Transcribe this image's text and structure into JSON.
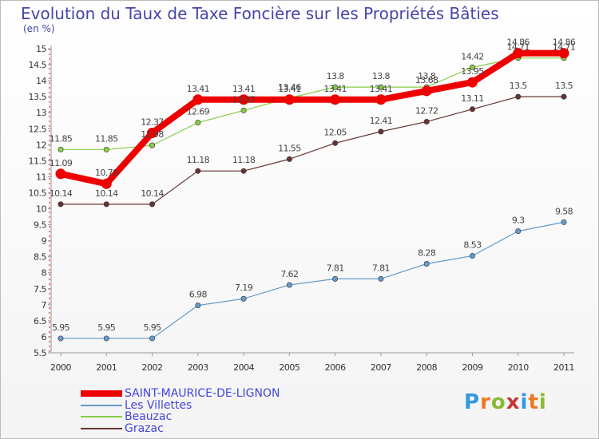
{
  "title": "Evolution du Taux de Taxe Foncière sur les Propriétés Bâties",
  "unit": "(en %)",
  "logo": "Proxiti",
  "logo_colors": [
    "#3399dd",
    "#ee7722",
    "#88bb33",
    "#cc3333",
    "#3399dd",
    "#ee7722",
    "#88bb33"
  ],
  "chart_data": {
    "type": "line",
    "title": "Evolution du Taux de Taxe Foncière sur les Propriétés Bâties",
    "ylabel": "(en %)",
    "xlabel": "",
    "ylim": [
      5.5,
      15
    ],
    "yticks": [
      "5.5",
      "6",
      "6.5",
      "7",
      "7.5",
      "8",
      "8.5",
      "9",
      "9.5",
      "10",
      "10.5",
      "11",
      "11.5",
      "12",
      "12.5",
      "13",
      "13.5",
      "14",
      "14.5",
      "15"
    ],
    "categories": [
      "2000",
      "2001",
      "2002",
      "2003",
      "2004",
      "2005",
      "2006",
      "2007",
      "2008",
      "2009",
      "2010",
      "2011"
    ],
    "grid": false,
    "legend": "bottom-left",
    "series": [
      {
        "name": "SAINT-MAURICE-DE-LIGNON",
        "color": "#ee0000",
        "thick": true,
        "values": [
          11.09,
          10.78,
          12.37,
          13.41,
          13.41,
          13.41,
          13.41,
          13.41,
          13.68,
          13.95,
          14.86,
          14.86
        ]
      },
      {
        "name": "Les Villettes",
        "color": "#6699cc",
        "thick": false,
        "values": [
          5.95,
          5.95,
          5.95,
          6.98,
          7.19,
          7.62,
          7.81,
          7.81,
          8.28,
          8.53,
          9.3,
          9.58
        ]
      },
      {
        "name": "Beauzac",
        "color": "#88cc44",
        "thick": false,
        "values": [
          11.85,
          11.85,
          11.98,
          12.69,
          13.07,
          13.46,
          13.8,
          13.8,
          13.8,
          14.42,
          14.71,
          14.71
        ]
      },
      {
        "name": "Grazac",
        "color": "#663333",
        "thick": false,
        "values": [
          10.14,
          10.14,
          10.14,
          11.18,
          11.18,
          11.55,
          12.05,
          12.41,
          12.72,
          13.11,
          13.5,
          13.5
        ]
      }
    ]
  }
}
